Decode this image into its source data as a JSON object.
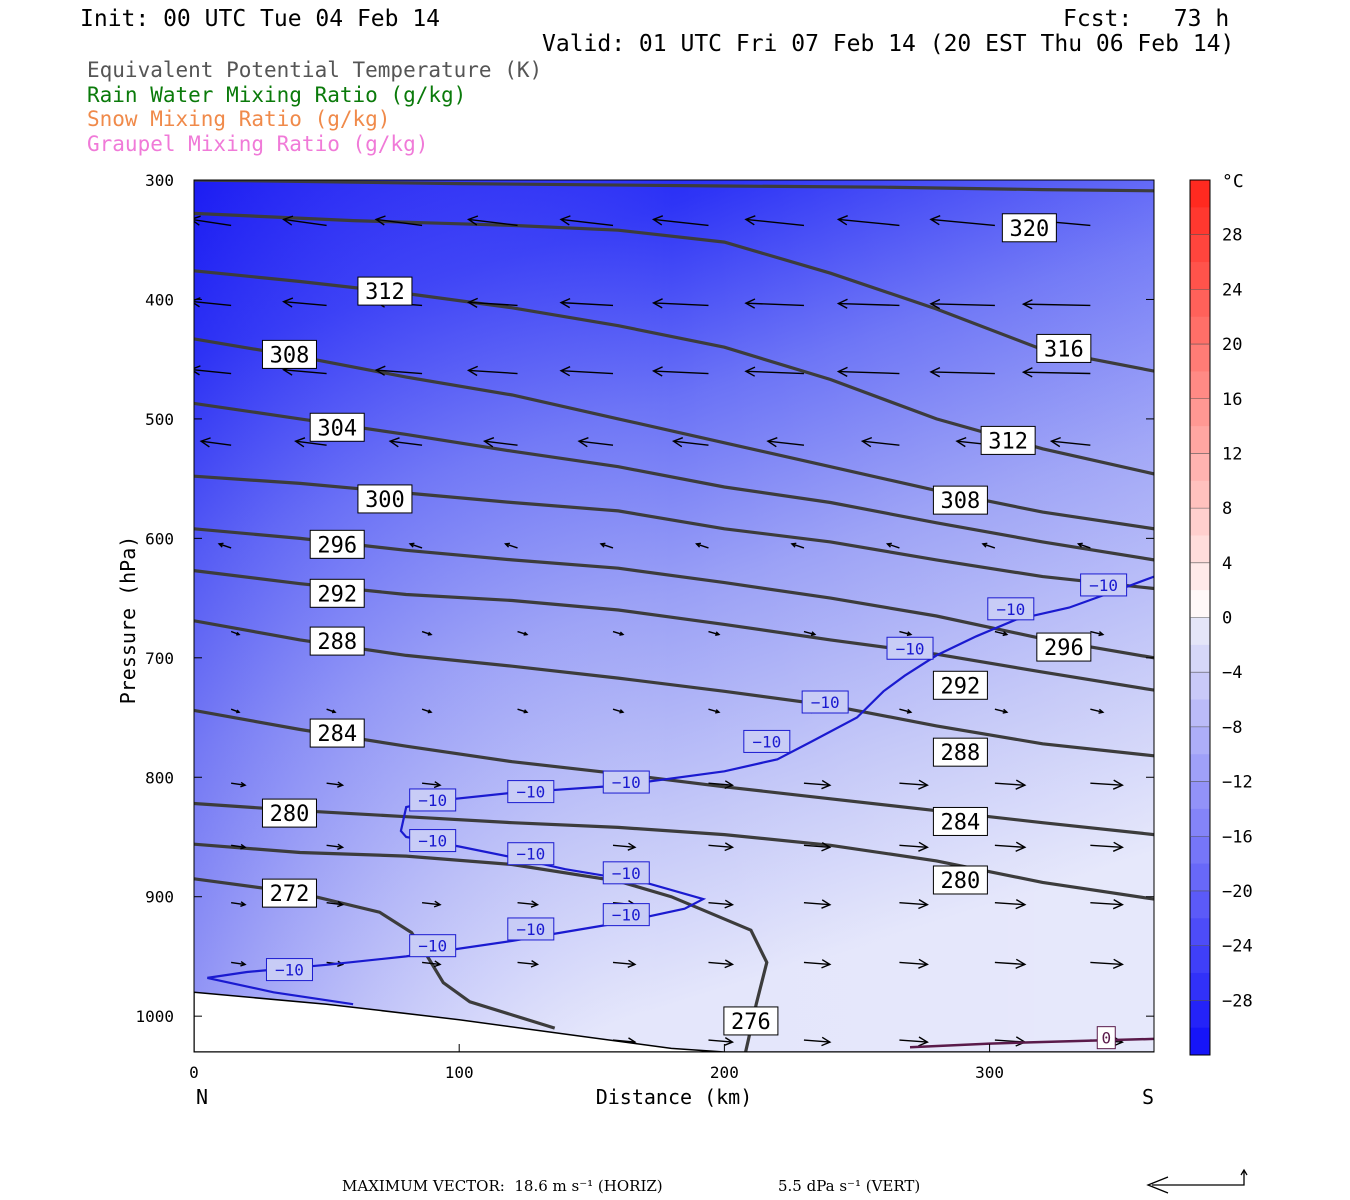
{
  "header": {
    "init": "Init: 00 UTC Tue 04 Feb 14",
    "fcst": "Fcst:   73 h",
    "valid": "Valid: 01 UTC Fri 07 Feb 14 (20 EST Thu 06 Feb 14)"
  },
  "legend": [
    {
      "label": "Equivalent Potential Temperature (K)",
      "color": "#555555"
    },
    {
      "label": "Rain Water Mixing Ratio (g/kg)",
      "color": "#0a7a0a"
    },
    {
      "label": "Snow Mixing Ratio (g/kg)",
      "color": "#f08a4a"
    },
    {
      "label": "Graupel Mixing Ratio (g/kg)",
      "color": "#f07ad8"
    }
  ],
  "footer": {
    "max_vector": "MAXIMUM VECTOR:  18.6 m s⁻¹ (HORIZ)",
    "vert": "5.5 dPa s⁻¹ (VERT)"
  },
  "chart_data": {
    "type": "cross-section",
    "xlabel": "Distance (km)",
    "ylabel": "Pressure (hPa)",
    "xlim": [
      0,
      362
    ],
    "ylim": [
      1030,
      300
    ],
    "x_ticks": [
      0,
      100,
      200,
      300
    ],
    "y_ticks": [
      300,
      400,
      500,
      600,
      700,
      800,
      900,
      1000
    ],
    "left_end_label": "N",
    "right_end_label": "S",
    "colorbar": {
      "unit": "°C",
      "range": [
        -32,
        32
      ],
      "tick_labels": [
        "28",
        "24",
        "20",
        "16",
        "12",
        "8",
        "4",
        "0",
        "−4",
        "−8",
        "−12",
        "−16",
        "−20",
        "−24",
        "−28"
      ],
      "tick_values": [
        28,
        24,
        20,
        16,
        12,
        8,
        4,
        0,
        -4,
        -8,
        -12,
        -16,
        -20,
        -24,
        -28
      ]
    },
    "theta_e_contours": [
      {
        "level": 320,
        "points": [
          [
            0,
            300
          ],
          [
            100,
            303
          ],
          [
            200,
            305
          ],
          [
            260,
            306
          ],
          [
            320,
            308
          ],
          [
            362,
            309
          ]
        ]
      },
      {
        "level": 316,
        "points": [
          [
            0,
            328
          ],
          [
            60,
            334
          ],
          [
            120,
            338
          ],
          [
            160,
            342
          ],
          [
            200,
            352
          ],
          [
            240,
            378
          ],
          [
            280,
            408
          ],
          [
            320,
            442
          ],
          [
            362,
            460
          ]
        ]
      },
      {
        "level": 312,
        "points": [
          [
            0,
            376
          ],
          [
            40,
            385
          ],
          [
            80,
            395
          ],
          [
            120,
            407
          ],
          [
            160,
            422
          ],
          [
            200,
            440
          ],
          [
            240,
            467
          ],
          [
            280,
            500
          ],
          [
            320,
            525
          ],
          [
            362,
            546
          ]
        ]
      },
      {
        "level": 308,
        "points": [
          [
            0,
            433
          ],
          [
            40,
            448
          ],
          [
            80,
            465
          ],
          [
            120,
            480
          ],
          [
            160,
            500
          ],
          [
            200,
            520
          ],
          [
            240,
            540
          ],
          [
            280,
            560
          ],
          [
            320,
            578
          ],
          [
            362,
            592
          ]
        ]
      },
      {
        "level": 304,
        "points": [
          [
            0,
            487
          ],
          [
            40,
            500
          ],
          [
            80,
            513
          ],
          [
            120,
            527
          ],
          [
            160,
            540
          ],
          [
            200,
            557
          ],
          [
            240,
            570
          ],
          [
            280,
            587
          ],
          [
            320,
            603
          ],
          [
            362,
            618
          ]
        ]
      },
      {
        "level": 300,
        "points": [
          [
            0,
            548
          ],
          [
            40,
            554
          ],
          [
            80,
            562
          ],
          [
            120,
            570
          ],
          [
            160,
            577
          ],
          [
            200,
            592
          ],
          [
            240,
            603
          ],
          [
            280,
            618
          ],
          [
            320,
            632
          ],
          [
            362,
            642
          ]
        ]
      },
      {
        "level": 296,
        "points": [
          [
            0,
            592
          ],
          [
            40,
            600
          ],
          [
            80,
            610
          ],
          [
            120,
            618
          ],
          [
            160,
            625
          ],
          [
            200,
            637
          ],
          [
            240,
            650
          ],
          [
            280,
            665
          ],
          [
            320,
            684
          ],
          [
            362,
            700
          ]
        ]
      },
      {
        "level": 292,
        "points": [
          [
            0,
            627
          ],
          [
            40,
            638
          ],
          [
            80,
            647
          ],
          [
            120,
            652
          ],
          [
            160,
            660
          ],
          [
            200,
            672
          ],
          [
            240,
            685
          ],
          [
            280,
            697
          ],
          [
            320,
            712
          ],
          [
            362,
            727
          ]
        ]
      },
      {
        "level": 288,
        "points": [
          [
            0,
            669
          ],
          [
            40,
            685
          ],
          [
            80,
            698
          ],
          [
            120,
            707
          ],
          [
            160,
            717
          ],
          [
            200,
            728
          ],
          [
            240,
            740
          ],
          [
            280,
            757
          ],
          [
            320,
            772
          ],
          [
            362,
            782
          ]
        ]
      },
      {
        "level": 284,
        "points": [
          [
            0,
            744
          ],
          [
            40,
            760
          ],
          [
            80,
            774
          ],
          [
            120,
            787
          ],
          [
            160,
            797
          ],
          [
            200,
            808
          ],
          [
            240,
            818
          ],
          [
            280,
            828
          ],
          [
            320,
            838
          ],
          [
            362,
            848
          ]
        ]
      },
      {
        "level": 280,
        "points": [
          [
            0,
            822
          ],
          [
            40,
            828
          ],
          [
            80,
            833
          ],
          [
            120,
            838
          ],
          [
            160,
            842
          ],
          [
            200,
            848
          ],
          [
            240,
            857
          ],
          [
            280,
            870
          ],
          [
            320,
            888
          ],
          [
            362,
            902
          ]
        ]
      },
      {
        "level": 276,
        "points": [
          [
            0,
            856
          ],
          [
            40,
            863
          ],
          [
            80,
            866
          ],
          [
            120,
            873
          ],
          [
            160,
            887
          ],
          [
            180,
            900
          ],
          [
            210,
            928
          ],
          [
            216,
            955
          ],
          [
            212,
            990
          ],
          [
            209,
            1020
          ],
          [
            208,
            1030
          ]
        ]
      },
      {
        "level": 272,
        "points": [
          [
            0,
            885
          ],
          [
            40,
            897
          ],
          [
            70,
            913
          ],
          [
            82,
            930
          ],
          [
            88,
            950
          ],
          [
            94,
            972
          ],
          [
            104,
            988
          ],
          [
            136,
            1010
          ]
        ]
      }
    ],
    "temperature_minus10_contour": [
      [
        5,
        968
      ],
      [
        20,
        963
      ],
      [
        50,
        957
      ],
      [
        80,
        950
      ],
      [
        120,
        937
      ],
      [
        160,
        922
      ],
      [
        185,
        910
      ],
      [
        192,
        902
      ],
      [
        170,
        888
      ],
      [
        140,
        877
      ],
      [
        120,
        867
      ],
      [
        100,
        858
      ],
      [
        80,
        850
      ],
      [
        78,
        845
      ],
      [
        80,
        825
      ],
      [
        90,
        820
      ],
      [
        120,
        813
      ],
      [
        160,
        807
      ],
      [
        200,
        795
      ],
      [
        220,
        785
      ],
      [
        233,
        770
      ],
      [
        250,
        750
      ],
      [
        260,
        728
      ],
      [
        268,
        715
      ],
      [
        280,
        698
      ],
      [
        295,
        682
      ],
      [
        310,
        668
      ],
      [
        330,
        658
      ],
      [
        350,
        642
      ],
      [
        362,
        632
      ]
    ],
    "temperature_minus10_contour_lower": [
      [
        5,
        968
      ],
      [
        30,
        980
      ],
      [
        60,
        990
      ]
    ],
    "rain_zero_contour": [
      [
        270,
        1026
      ],
      [
        300,
        1023
      ],
      [
        330,
        1021
      ],
      [
        362,
        1019
      ]
    ],
    "zero_label": "0",
    "terrain_surface": [
      [
        0,
        980
      ],
      [
        50,
        990
      ],
      [
        100,
        1003
      ],
      [
        140,
        1015
      ],
      [
        180,
        1027
      ],
      [
        200,
        1030
      ]
    ],
    "contour_labels_theta_e": [
      {
        "text": "320",
        "x": 315,
        "y": 340
      },
      {
        "text": "316",
        "x": 328,
        "y": 441
      },
      {
        "text": "312",
        "x": 72,
        "y": 393
      },
      {
        "text": "312",
        "x": 307,
        "y": 518
      },
      {
        "text": "308",
        "x": 36,
        "y": 446
      },
      {
        "text": "308",
        "x": 289,
        "y": 568
      },
      {
        "text": "304",
        "x": 54,
        "y": 507
      },
      {
        "text": "300",
        "x": 72,
        "y": 567
      },
      {
        "text": "296",
        "x": 54,
        "y": 605
      },
      {
        "text": "296",
        "x": 328,
        "y": 691
      },
      {
        "text": "292",
        "x": 54,
        "y": 646
      },
      {
        "text": "292",
        "x": 289,
        "y": 723
      },
      {
        "text": "288",
        "x": 54,
        "y": 686
      },
      {
        "text": "288",
        "x": 289,
        "y": 779
      },
      {
        "text": "284",
        "x": 54,
        "y": 763
      },
      {
        "text": "284",
        "x": 289,
        "y": 837
      },
      {
        "text": "280",
        "x": 36,
        "y": 830
      },
      {
        "text": "280",
        "x": 289,
        "y": 886
      },
      {
        "text": "276",
        "x": 210,
        "y": 1004
      },
      {
        "text": "272",
        "x": 36,
        "y": 897
      }
    ],
    "contour_labels_minus10": [
      {
        "text": "−10",
        "x": 36,
        "y": 961
      },
      {
        "text": "−10",
        "x": 90,
        "y": 941
      },
      {
        "text": "−10",
        "x": 127,
        "y": 927
      },
      {
        "text": "−10",
        "x": 163,
        "y": 915
      },
      {
        "text": "−10",
        "x": 90,
        "y": 853
      },
      {
        "text": "−10",
        "x": 127,
        "y": 864
      },
      {
        "text": "−10",
        "x": 163,
        "y": 880
      },
      {
        "text": "−10",
        "x": 90,
        "y": 819
      },
      {
        "text": "−10",
        "x": 127,
        "y": 812
      },
      {
        "text": "−10",
        "x": 163,
        "y": 804
      },
      {
        "text": "−10",
        "x": 216,
        "y": 770
      },
      {
        "text": "−10",
        "x": 238,
        "y": 737
      },
      {
        "text": "−10",
        "x": 270,
        "y": 692
      },
      {
        "text": "−10",
        "x": 308,
        "y": 659
      },
      {
        "text": "−10",
        "x": 343,
        "y": 639
      }
    ]
  }
}
